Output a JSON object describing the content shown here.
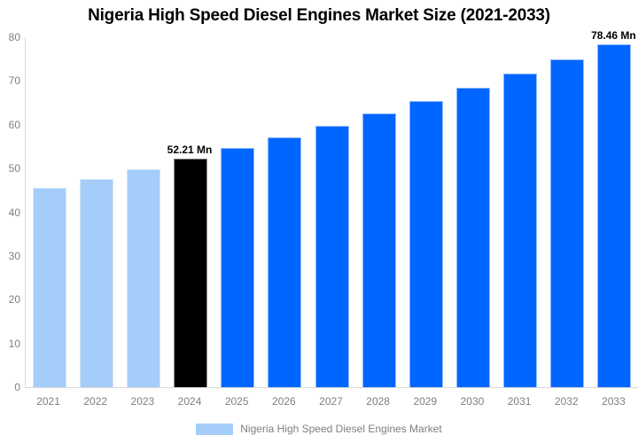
{
  "chart_data": {
    "type": "bar",
    "title": "Nigeria High Speed Diesel Engines Market Size (2021-2033)",
    "xlabel": "",
    "ylabel": "",
    "categories": [
      "2021",
      "2022",
      "2023",
      "2024",
      "2025",
      "2026",
      "2027",
      "2028",
      "2029",
      "2030",
      "2031",
      "2032",
      "2033"
    ],
    "values": [
      45.58,
      47.69,
      49.9,
      52.21,
      54.63,
      57.16,
      59.81,
      62.58,
      65.48,
      68.51,
      71.68,
      75.0,
      78.46
    ],
    "unit": "Mn",
    "bar_colors": [
      "#a4cdf9",
      "#a4cdf9",
      "#a4cdf9",
      "#000000",
      "#0066ff",
      "#0066ff",
      "#0066ff",
      "#0066ff",
      "#0066ff",
      "#0066ff",
      "#0066ff",
      "#0066ff",
      "#0066ff"
    ],
    "annotations": [
      {
        "category": "2024",
        "text": "52.21 Mn"
      },
      {
        "category": "2033",
        "text": "78.46 Mn"
      }
    ],
    "ylim": [
      0,
      80
    ],
    "yticks": [
      0,
      10,
      20,
      30,
      40,
      50,
      60,
      70,
      80
    ],
    "grid": false,
    "legend": {
      "position": "bottom-center",
      "items": [
        {
          "label": "Nigeria High Speed Diesel Engines Market",
          "swatch_color": "#a4cdf9"
        }
      ]
    },
    "colors": {
      "historical_bar": "#a4cdf9",
      "base_year_bar": "#000000",
      "forecast_bar": "#0066ff",
      "axis_text": "#7f7f7f",
      "axis_line": "#d9d9d9",
      "title_text": "#000000"
    }
  }
}
